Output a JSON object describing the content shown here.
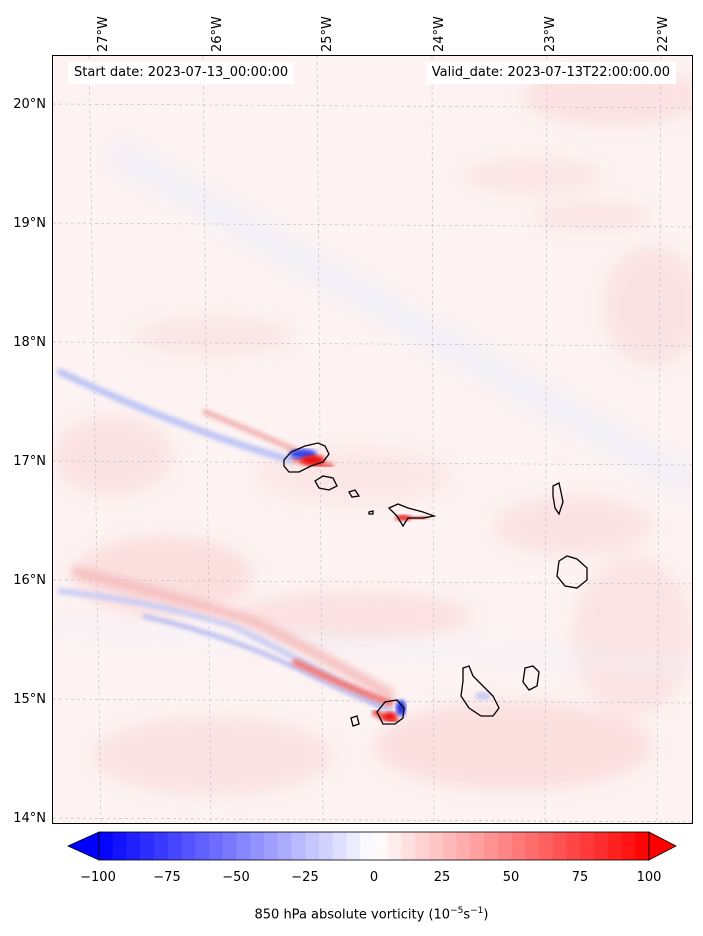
{
  "header": {
    "start_date": "Start date: 2023-07-13_00:00:00",
    "valid_date": "Valid_date: 2023-07-13T22:00:00.00"
  },
  "lon_labels": [
    "27°W",
    "26°W",
    "25°W",
    "24°W",
    "23°W",
    "22°W"
  ],
  "lat_labels": [
    "20°N",
    "19°N",
    "18°N",
    "17°N",
    "16°N",
    "15°N",
    "14°N"
  ],
  "colorbar": {
    "ticks": [
      "−100",
      "−75",
      "−50",
      "−25",
      "0",
      "25",
      "50",
      "75",
      "100"
    ],
    "label_text": "850 hPa absolute vorticity (10",
    "label_exp1": "−5",
    "label_mid": "s",
    "label_exp2": "−1",
    "label_end": ")",
    "min_color": "#0000ff",
    "mid_color": "#ffffff",
    "max_color": "#ff0000"
  },
  "map": {
    "variable": "850 hPa absolute vorticity",
    "land_outline_color": "#000000"
  }
}
